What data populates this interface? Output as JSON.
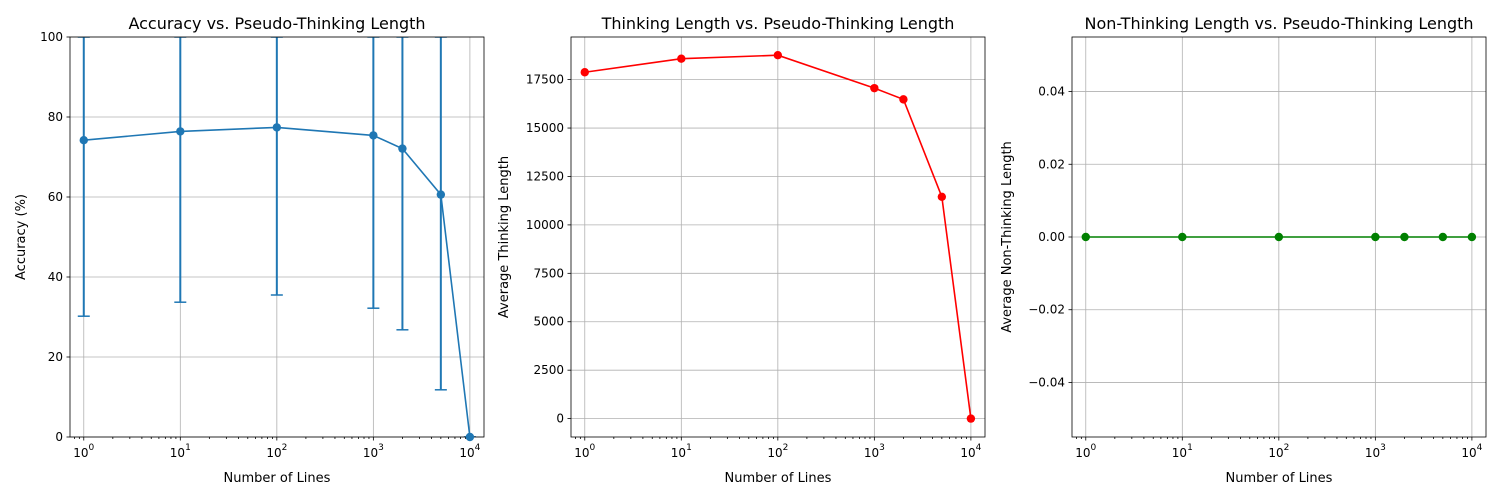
{
  "chart_data": [
    {
      "type": "line",
      "title": "Accuracy vs. Pseudo-Thinking Length",
      "xlabel": "Number of Lines",
      "ylabel": "Accuracy (%)",
      "xscale": "log",
      "xlim": [
        0.72,
        14000
      ],
      "ylim": [
        0,
        100
      ],
      "grid": true,
      "color": "#1f77b4",
      "error_bars": true,
      "x": [
        1,
        10,
        100,
        1000,
        2000,
        5000,
        10000
      ],
      "y": [
        74.2,
        76.4,
        77.4,
        75.4,
        72.1,
        60.6,
        0.0
      ],
      "y_err_lower": [
        30.2,
        33.7,
        35.5,
        32.2,
        26.8,
        11.8,
        0.0
      ],
      "y_err_upper": [
        100,
        100,
        100,
        100,
        100,
        100,
        0.0
      ],
      "yticks": [
        "0",
        "20",
        "40",
        "60",
        "80",
        "100"
      ],
      "xticks": [
        {
          "base": "10",
          "exp": "0"
        },
        {
          "base": "10",
          "exp": "1"
        },
        {
          "base": "10",
          "exp": "2"
        },
        {
          "base": "10",
          "exp": "3"
        },
        {
          "base": "10",
          "exp": "4"
        }
      ]
    },
    {
      "type": "line",
      "title": "Thinking Length vs. Pseudo-Thinking Length",
      "xlabel": "Number of Lines",
      "ylabel": "Average Thinking Length",
      "xscale": "log",
      "xlim": [
        0.72,
        14000
      ],
      "ylim": [
        -950,
        19700
      ],
      "grid": true,
      "color": "#ff0000",
      "x": [
        1,
        10,
        100,
        1000,
        2000,
        5000,
        10000
      ],
      "y": [
        17880,
        18580,
        18760,
        17060,
        16480,
        11450,
        0
      ],
      "yticks": [
        "0",
        "2500",
        "5000",
        "7500",
        "10000",
        "12500",
        "15000",
        "17500"
      ],
      "xticks": [
        {
          "base": "10",
          "exp": "0"
        },
        {
          "base": "10",
          "exp": "1"
        },
        {
          "base": "10",
          "exp": "2"
        },
        {
          "base": "10",
          "exp": "3"
        },
        {
          "base": "10",
          "exp": "4"
        }
      ]
    },
    {
      "type": "line",
      "title": "Non-Thinking Length vs. Pseudo-Thinking Length",
      "xlabel": "Number of Lines",
      "ylabel": "Average Non-Thinking Length",
      "xscale": "log",
      "xlim": [
        0.72,
        14000
      ],
      "ylim": [
        -0.055,
        0.055
      ],
      "grid": true,
      "color": "#008000",
      "x": [
        1,
        10,
        100,
        1000,
        2000,
        5000,
        10000
      ],
      "y": [
        0,
        0,
        0,
        0,
        0,
        0,
        0
      ],
      "yticks": [
        "−0.04",
        "−0.02",
        "0.00",
        "0.02",
        "0.04"
      ],
      "xticks": [
        {
          "base": "10",
          "exp": "0"
        },
        {
          "base": "10",
          "exp": "1"
        },
        {
          "base": "10",
          "exp": "2"
        },
        {
          "base": "10",
          "exp": "3"
        },
        {
          "base": "10",
          "exp": "4"
        }
      ]
    }
  ]
}
